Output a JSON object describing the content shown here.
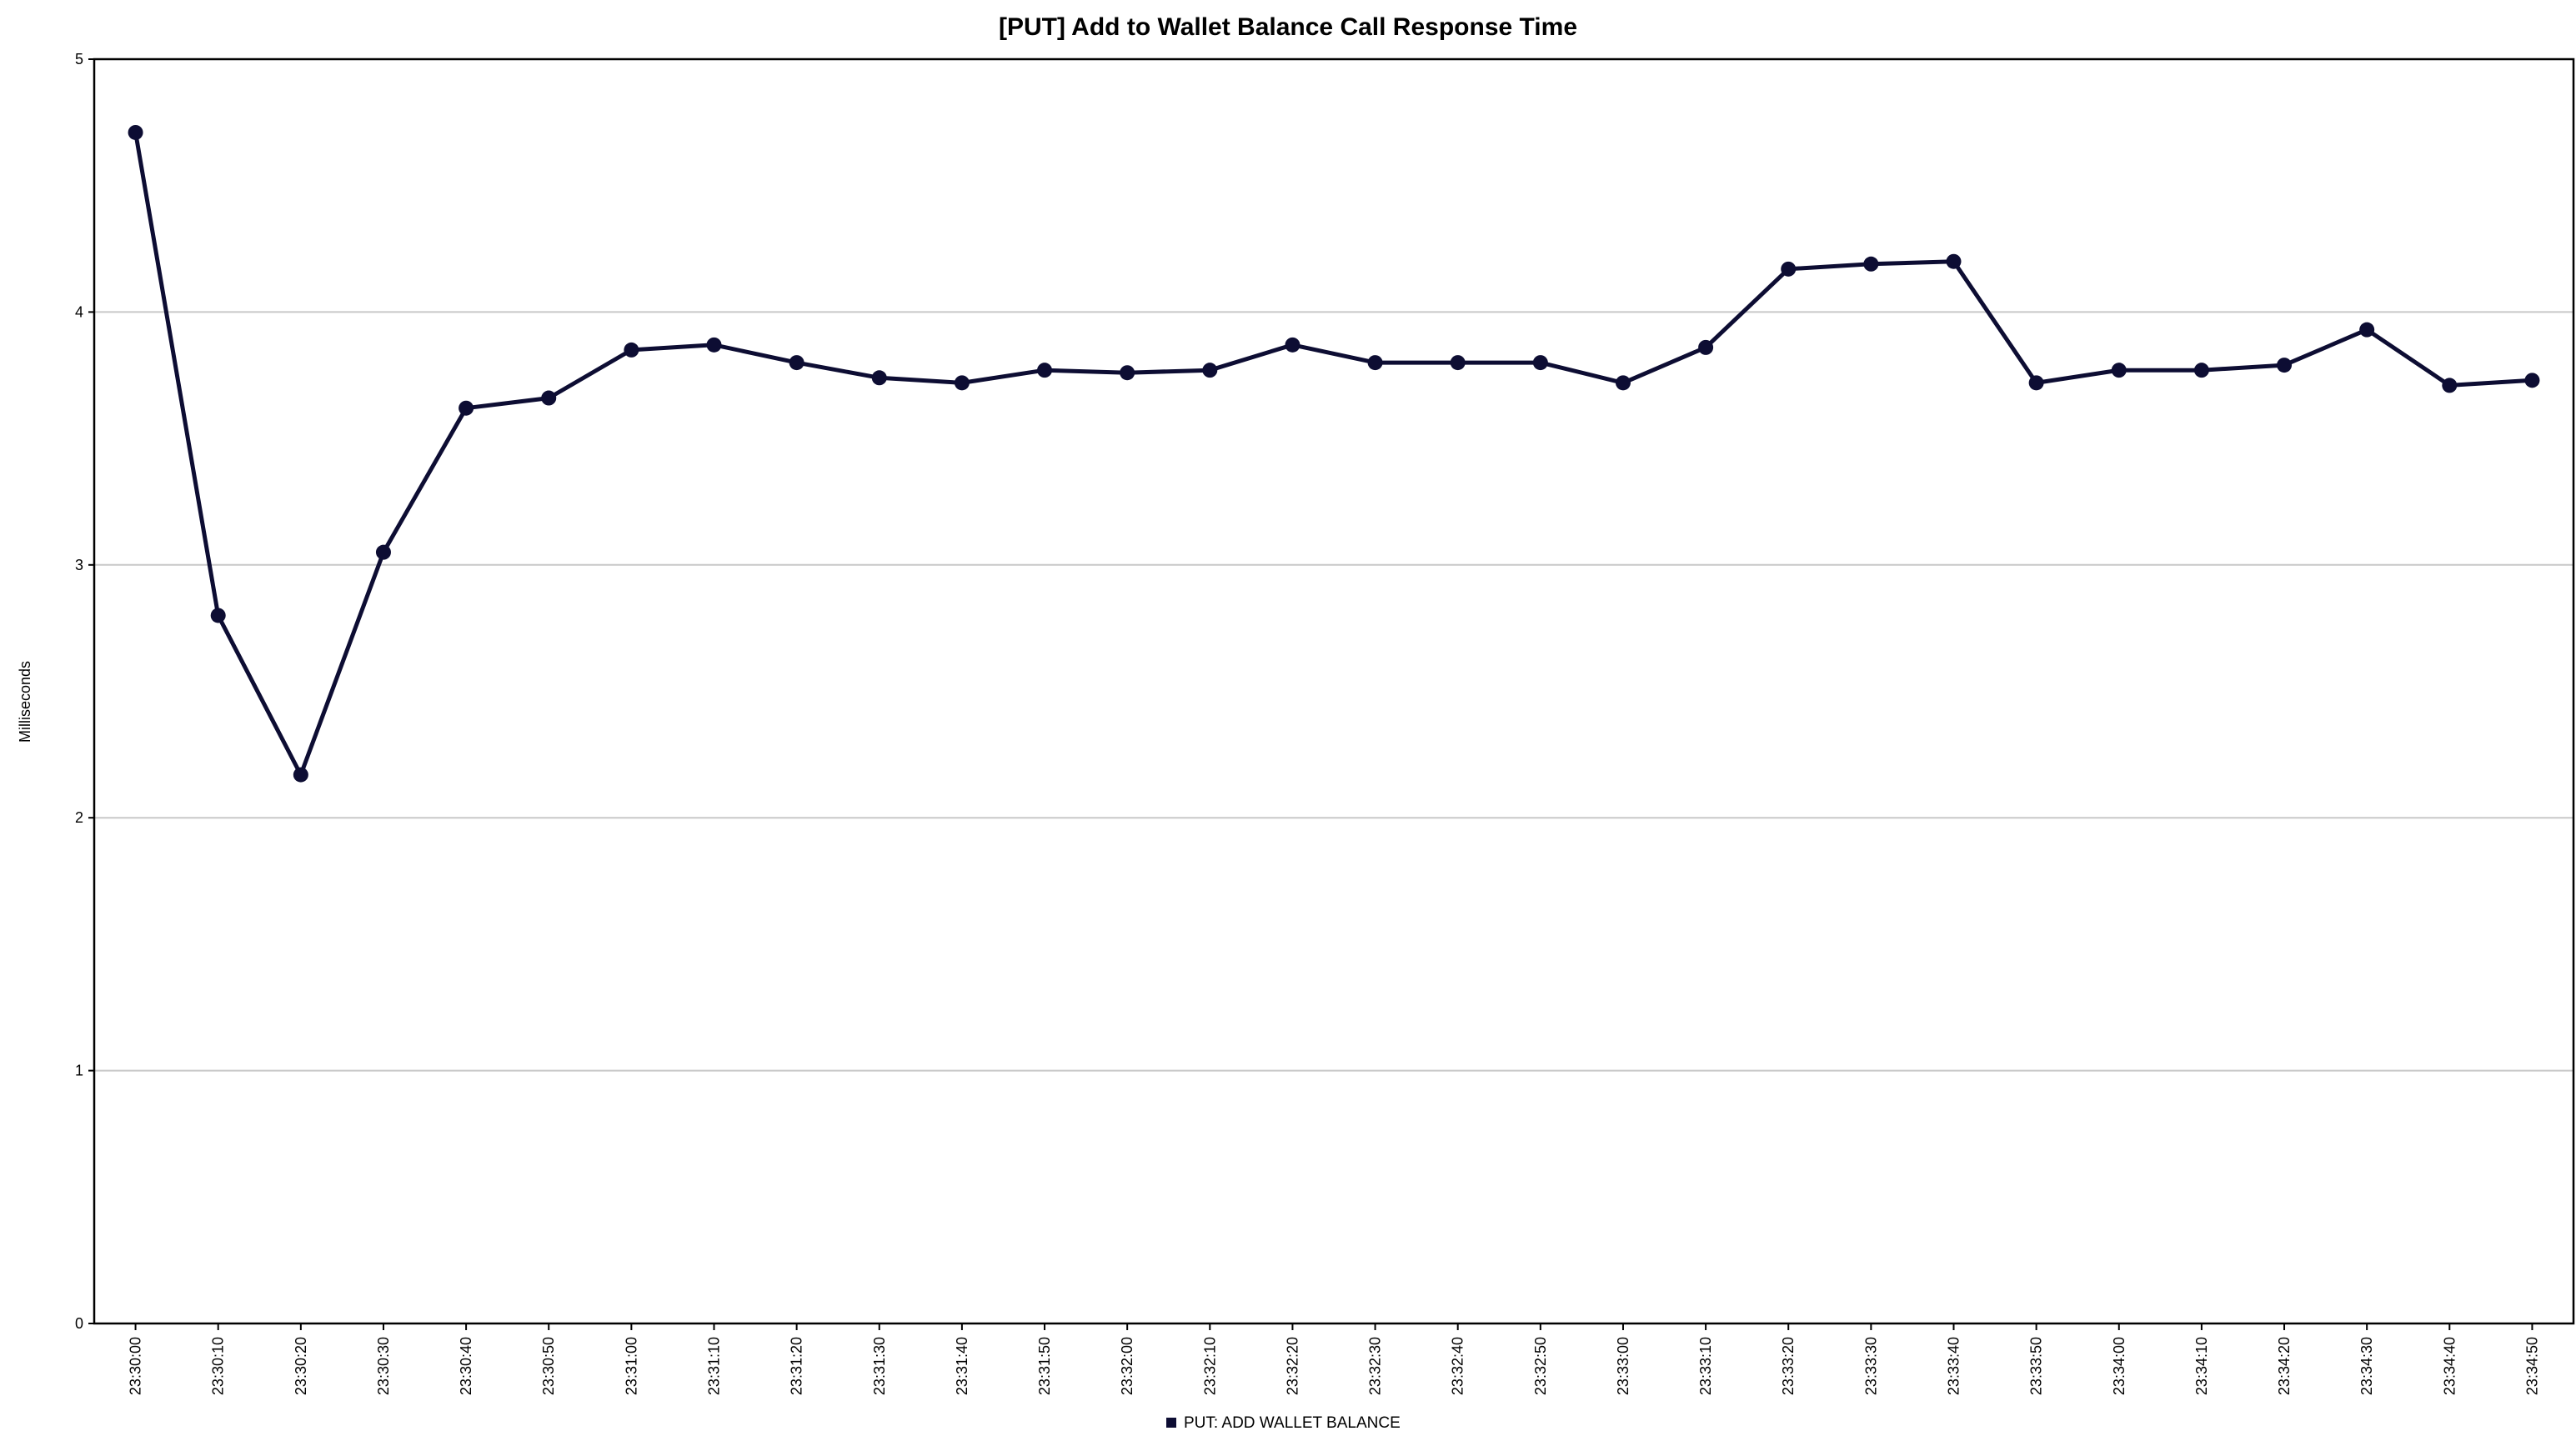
{
  "chart_data": {
    "type": "line",
    "title": "[PUT] Add to Wallet Balance Call Response Time",
    "xlabel": "",
    "ylabel": "Milliseconds",
    "ylim": [
      0,
      5
    ],
    "yticks": [
      0,
      1,
      2,
      3,
      4,
      5
    ],
    "grid": true,
    "legend_position": "bottom",
    "categories": [
      "23:30:00",
      "23:30:10",
      "23:30:20",
      "23:30:30",
      "23:30:40",
      "23:30:50",
      "23:31:00",
      "23:31:10",
      "23:31:20",
      "23:31:30",
      "23:31:40",
      "23:31:50",
      "23:32:00",
      "23:32:10",
      "23:32:20",
      "23:32:30",
      "23:32:40",
      "23:32:50",
      "23:33:00",
      "23:33:10",
      "23:33:20",
      "23:33:30",
      "23:33:40",
      "23:33:50",
      "23:34:00",
      "23:34:10",
      "23:34:20",
      "23:34:30",
      "23:34:40",
      "23:34:50"
    ],
    "series": [
      {
        "name": "PUT: ADD WALLET BALANCE",
        "color": "#0d0d33",
        "values": [
          4.71,
          2.8,
          2.17,
          3.05,
          3.62,
          3.66,
          3.85,
          3.87,
          3.8,
          3.74,
          3.72,
          3.77,
          3.76,
          3.77,
          3.87,
          3.8,
          3.8,
          3.8,
          3.72,
          3.86,
          4.17,
          4.19,
          4.2,
          3.72,
          3.77,
          3.77,
          3.79,
          3.93,
          3.71,
          3.73
        ]
      }
    ]
  }
}
